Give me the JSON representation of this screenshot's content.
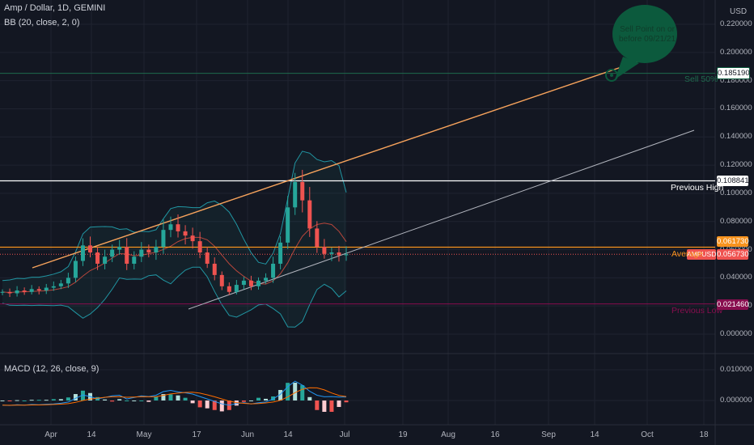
{
  "chart": {
    "symbol_title": "Amp / Dollar, 1D, GEMINI",
    "bb_title": "BB (20, close, 2, 0)",
    "macd_title": "MACD (12, 26, close, 9)",
    "currency": "USD"
  },
  "price_axis": [
    "0.220000",
    "0.200000",
    "0.180000",
    "0.160000",
    "0.140000",
    "0.120000",
    "0.100000",
    "0.080000",
    "0.060000",
    "0.040000",
    "0.020000",
    "0.000000"
  ],
  "macd_axis": [
    "0.010000",
    "0.000000"
  ],
  "time_axis": [
    "Apr",
    "14",
    "May",
    "17",
    "Jun",
    "14",
    "Jul",
    "19",
    "Aug",
    "16",
    "Sep",
    "14",
    "Oct",
    "18"
  ],
  "price_tags": {
    "sell_level": "0.185190",
    "previous_high": "0.108841",
    "average": "0.061730",
    "last_price": "0.056730",
    "symbol": "AMPUSD",
    "previous_low": "0.021460"
  },
  "annotations": {
    "sell_50": "Sell 50%",
    "previous_high": "Previous High",
    "average": "Average",
    "previous_low": "Previous Low",
    "sell_point": "Sell Point on or before 09/21/21"
  },
  "colors": {
    "background": "#131722",
    "up": "#26a69a",
    "down": "#ef5350",
    "resistance": "#f7a35c",
    "support": "#b2b5be",
    "bubble": "#0c5a3d"
  },
  "chart_data": {
    "type": "candlestick",
    "ylim": [
      0,
      0.23
    ],
    "series": [
      {
        "name": "AMPUSD",
        "last": 0.05673
      },
      {
        "name": "Sell 50%",
        "level": 0.18519
      },
      {
        "name": "Previous High",
        "level": 0.108841
      },
      {
        "name": "Average",
        "level": 0.06173
      },
      {
        "name": "Previous Low",
        "level": 0.02146
      }
    ],
    "close_path": [
      0.03,
      0.029,
      0.031,
      0.03,
      0.032,
      0.031,
      0.033,
      0.034,
      0.036,
      0.04,
      0.052,
      0.063,
      0.058,
      0.05,
      0.055,
      0.06,
      0.062,
      0.05,
      0.055,
      0.06,
      0.058,
      0.062,
      0.074,
      0.078,
      0.073,
      0.07,
      0.066,
      0.058,
      0.05,
      0.042,
      0.034,
      0.03,
      0.035,
      0.038,
      0.034,
      0.038,
      0.04,
      0.05,
      0.065,
      0.09,
      0.108,
      0.095,
      0.075,
      0.062,
      0.057,
      0.058,
      0.056,
      0.0567
    ]
  }
}
